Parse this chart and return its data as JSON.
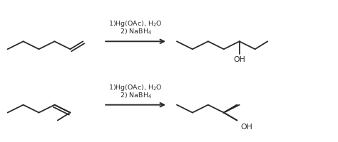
{
  "bg_color": "#ffffff",
  "line_color": "#2a2a2a",
  "text_color": "#2a2a2a",
  "font_size": 6.8,
  "lw": 1.3
}
